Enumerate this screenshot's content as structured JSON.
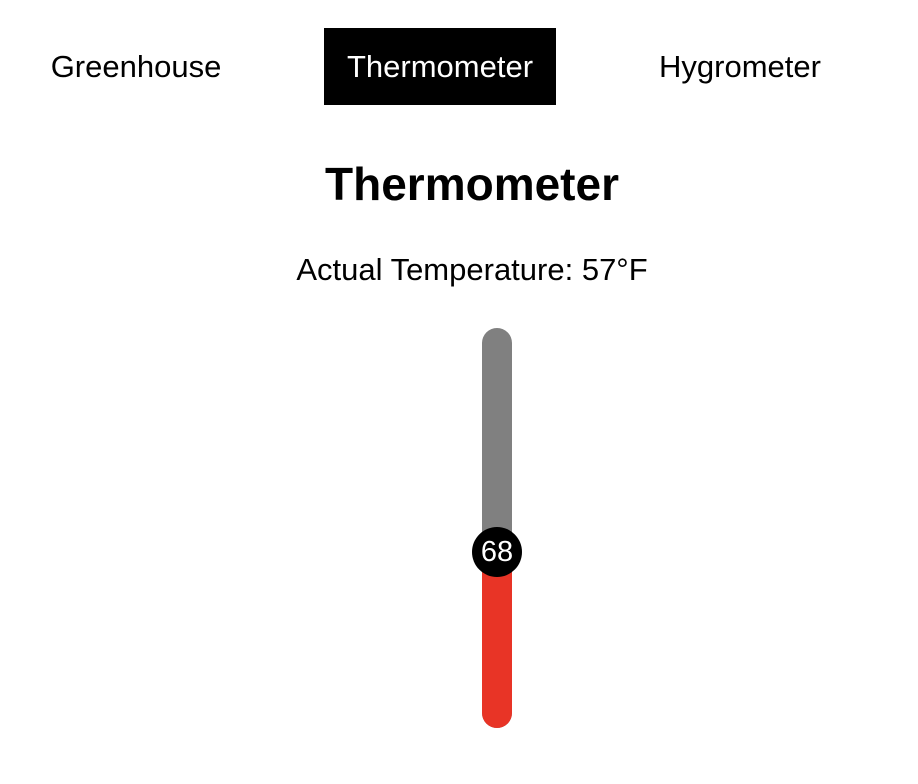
{
  "nav": {
    "tabs": [
      {
        "label": "Greenhouse",
        "active": false
      },
      {
        "label": "Thermometer",
        "active": true
      },
      {
        "label": "Hygrometer",
        "active": false
      }
    ]
  },
  "main": {
    "title": "Thermometer",
    "actual_temperature_label": "Actual Temperature: 57°F"
  },
  "slider": {
    "value": "68",
    "fraction": 0.44,
    "colors": {
      "track": "#808080",
      "fill": "#e83426",
      "thumb": "#000000"
    }
  }
}
